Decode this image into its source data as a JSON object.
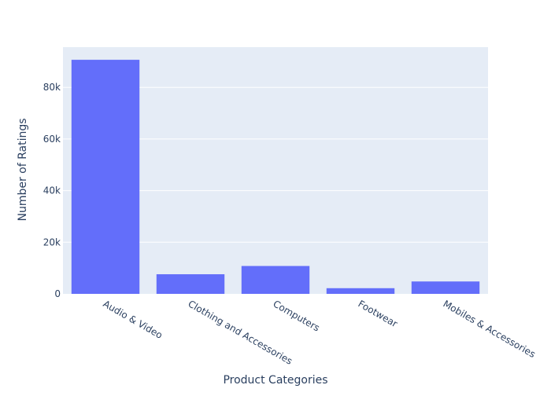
{
  "chart_data": {
    "type": "bar",
    "title": "",
    "xlabel": "Product Categories",
    "ylabel": "Number of Ratings",
    "categories": [
      "Audio & Video",
      "Clothing and Accessories",
      "Computers",
      "Footwear",
      "Mobiles & Accessories"
    ],
    "values": [
      90700,
      7600,
      10800,
      2200,
      4800
    ],
    "ylim": [
      0,
      95600
    ],
    "yticks": [
      0,
      20000,
      40000,
      60000,
      80000
    ],
    "ytick_labels": [
      "0",
      "20k",
      "40k",
      "60k",
      "80k"
    ],
    "grid": true,
    "legend": "none"
  },
  "colors": {
    "plot_bg": "#e5ecf6",
    "bar": "#636efa",
    "grid": "#ffffff",
    "text": "#2a3f5f"
  }
}
